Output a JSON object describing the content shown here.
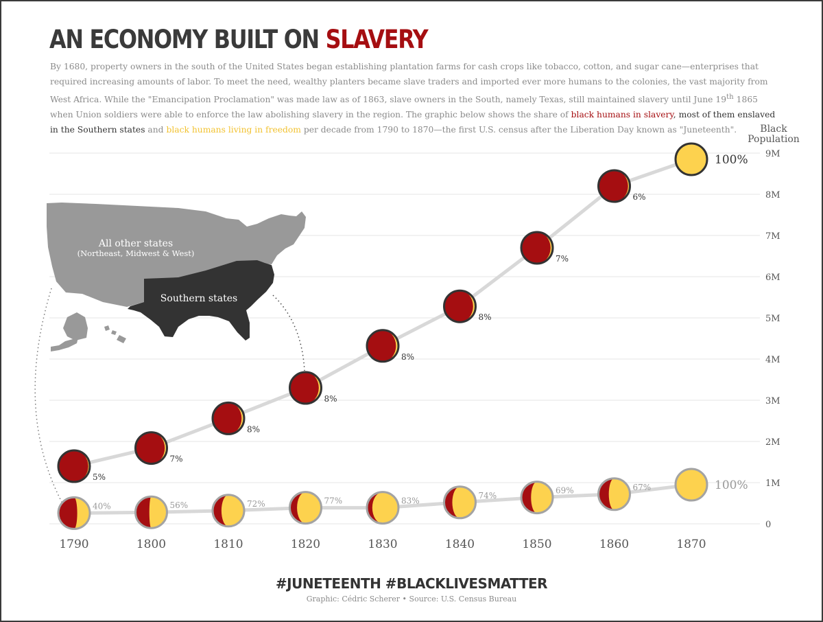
{
  "title": {
    "prefix": "AN ECONOMY BUILT ON",
    "highlight": "SLAVERY"
  },
  "intro": {
    "p1": "By 1680, property owners in the south of the United States began establishing plantation farms for cash crops like tobacco, cotton, and sugar cane—enterprises that required increasing amounts of labor. To meet the need, wealthy planters became slave traders and imported ever more humans to the colonies, the vast majority from West Africa. While the \"Emancipation Proclamation\" was made law as of 1863, slave owners in the South, namely Texas, still maintained slavery until June 19",
    "sup": "th",
    "p2": " 1865 when Union soldiers were able to enforce the law abolishing slavery in the region. The graphic below shows the share of ",
    "slave_label": "black humans in slavery",
    "p3": ", most of them enslaved in the Southern states",
    "p4": " and ",
    "free_label": "black humans living in freedom",
    "p5": " per decade from 1790 to 1870—the first U.S. census after the Liberation Day known as \"Juneteenth\"."
  },
  "map": {
    "other_label": "All other states",
    "other_sub": "(Northeast, Midwest & West)",
    "south_label": "Southern states"
  },
  "chart_data": {
    "type": "scatter",
    "ylabel_line1": "Black",
    "ylabel_line2": "Population",
    "yticks": [
      "0",
      "1M",
      "2M",
      "3M",
      "4M",
      "5M",
      "6M",
      "7M",
      "8M",
      "9M"
    ],
    "ylim": [
      0,
      9000000
    ],
    "x": [
      "1790",
      "1800",
      "1810",
      "1820",
      "1830",
      "1840",
      "1850",
      "1860",
      "1870"
    ],
    "series": [
      {
        "name": "Southern states",
        "population": [
          1400000,
          1840000,
          2560000,
          3300000,
          4320000,
          5280000,
          6700000,
          8200000,
          8850000
        ],
        "free_share_label": [
          "5%",
          "7%",
          "8%",
          "8%",
          "8%",
          "8%",
          "7%",
          "6%",
          "100%"
        ],
        "free_share": [
          0.05,
          0.07,
          0.08,
          0.08,
          0.08,
          0.08,
          0.07,
          0.06,
          1.0
        ]
      },
      {
        "name": "All other states",
        "population": [
          260000,
          280000,
          320000,
          390000,
          390000,
          520000,
          640000,
          720000,
          950000
        ],
        "free_share_label": [
          "40%",
          "56%",
          "72%",
          "77%",
          "83%",
          "74%",
          "69%",
          "67%",
          "100%"
        ],
        "free_share": [
          0.4,
          0.56,
          0.72,
          0.77,
          0.83,
          0.74,
          0.69,
          0.67,
          1.0
        ]
      }
    ],
    "colors": {
      "slave": "#a50e11",
      "free": "#fdd24e",
      "south_stroke": "#333333",
      "other_stroke": "#a3a3a3",
      "grid": "#e6e6e6",
      "line": "#d8d8d8"
    }
  },
  "footer": {
    "hashtag": "#JUNETEENTH #BLACKLIVESMATTER",
    "credit": "Graphic: Cédric Scherer • Source: U.S. Census Bureau"
  }
}
